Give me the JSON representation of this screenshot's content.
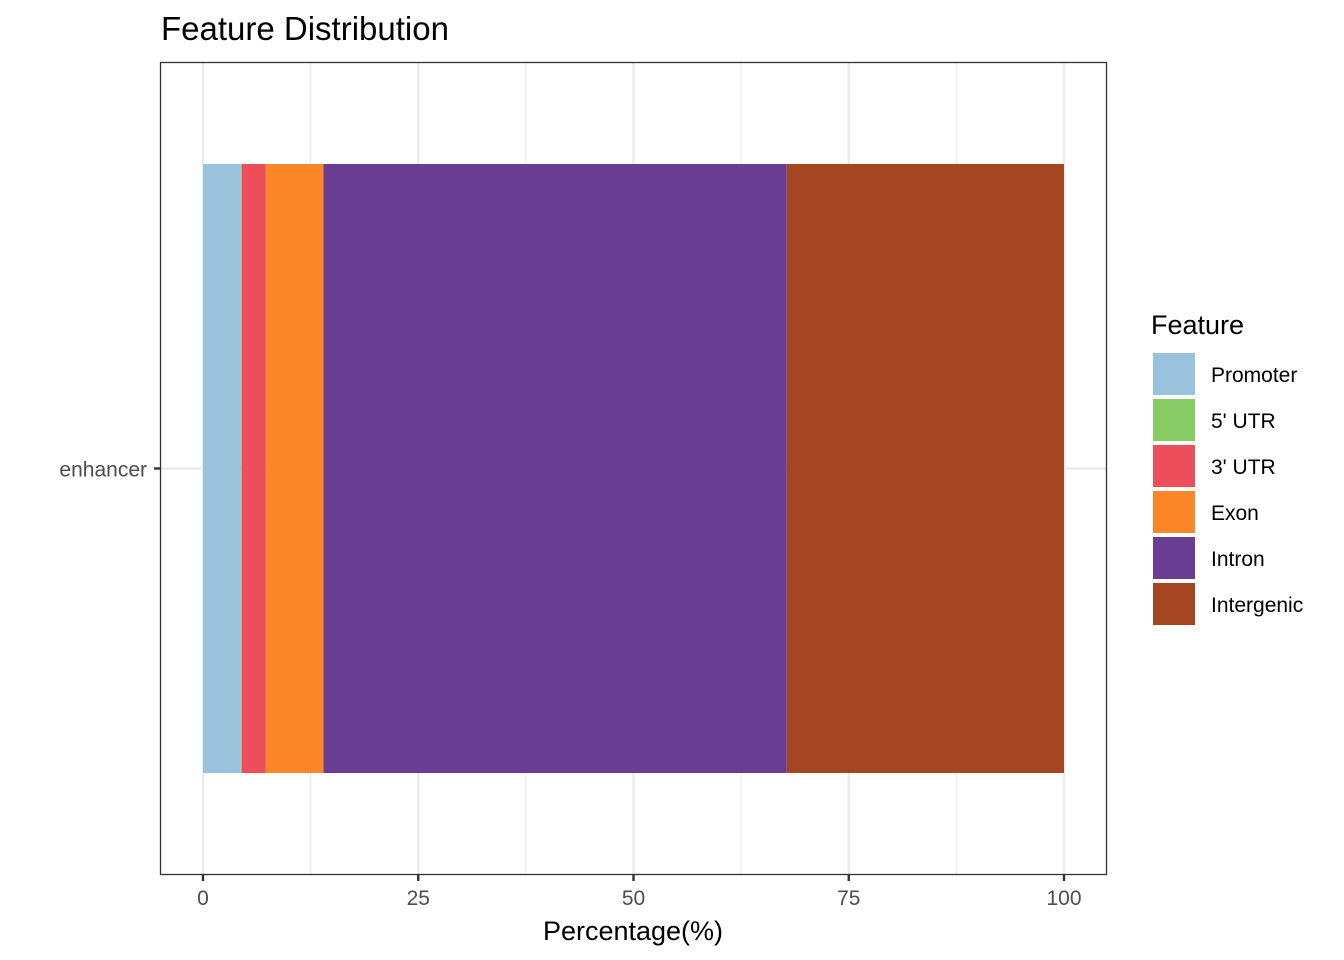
{
  "chart_data": {
    "type": "bar",
    "orientation": "horizontal",
    "stacked": true,
    "title": "Feature Distribution",
    "xlabel": "Percentage(%)",
    "ylabel": "",
    "xlim": [
      0,
      100
    ],
    "x_ticks": [
      0,
      25,
      50,
      75,
      100
    ],
    "categories": [
      "enhancer"
    ],
    "legend_title": "Feature",
    "legend_position": "right",
    "grid": true,
    "series": [
      {
        "name": "Promoter",
        "values": [
          4.4
        ],
        "color": "#99c3dc"
      },
      {
        "name": "5' UTR",
        "values": [
          0.1
        ],
        "color": "#88cc66"
      },
      {
        "name": "3' UTR",
        "values": [
          2.8
        ],
        "color": "#ec4f5a"
      },
      {
        "name": "Exon",
        "values": [
          6.7
        ],
        "color": "#fb8628"
      },
      {
        "name": "Intron",
        "values": [
          53.8
        ],
        "color": "#683d92"
      },
      {
        "name": "Intergenic",
        "values": [
          32.2
        ],
        "color": "#a34621"
      }
    ]
  }
}
